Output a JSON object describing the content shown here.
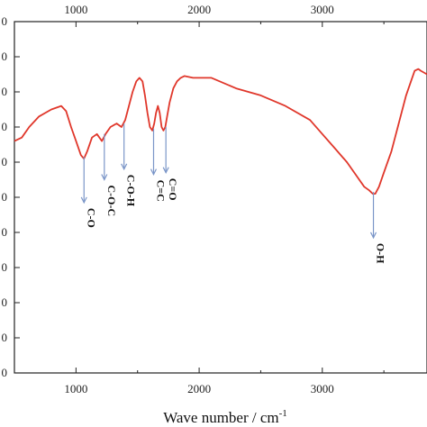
{
  "chart_data": {
    "type": "line",
    "xlabel": "Wave number / cm",
    "xlabel_superscript": "-1",
    "xlim": [
      500,
      3850
    ],
    "ylim": [
      0,
      1
    ],
    "x_ticks": [
      1000,
      2000,
      3000
    ],
    "x_tick_labels": [
      "1000",
      "2000",
      "3000"
    ],
    "top_tick_labels": [
      "1000",
      "2000",
      "3000"
    ],
    "y_ticks": [
      0.0,
      0.1,
      0.2,
      0.3,
      0.4,
      0.5,
      0.6,
      0.7,
      0.8,
      0.9,
      1.0
    ],
    "y_tick_labels": [
      "0",
      "0",
      "0",
      "0",
      "0",
      "0",
      "0",
      "0",
      "0",
      "0",
      "0"
    ],
    "grid": false,
    "line_color": "#e0372b",
    "arrow_color": "#7b96c8",
    "series": [
      {
        "x": [
          500,
          560,
          620,
          700,
          800,
          880,
          920,
          960,
          1000,
          1040,
          1065,
          1090,
          1130,
          1170,
          1210,
          1240,
          1280,
          1330,
          1370,
          1400,
          1430,
          1460,
          1490,
          1515,
          1540,
          1560,
          1580,
          1600,
          1620,
          1635,
          1650,
          1665,
          1680,
          1695,
          1710,
          1725,
          1740,
          1760,
          1790,
          1820,
          1850,
          1880,
          1950,
          2100,
          2300,
          2500,
          2700,
          2900,
          3000,
          3100,
          3200,
          3280,
          3340,
          3380,
          3410,
          3430,
          3460,
          3500,
          3560,
          3620,
          3680,
          3720,
          3750,
          3780,
          3800,
          3850
        ],
        "y": [
          0.66,
          0.67,
          0.7,
          0.73,
          0.75,
          0.76,
          0.745,
          0.7,
          0.66,
          0.62,
          0.61,
          0.63,
          0.67,
          0.68,
          0.66,
          0.68,
          0.7,
          0.71,
          0.7,
          0.72,
          0.76,
          0.8,
          0.83,
          0.84,
          0.83,
          0.79,
          0.74,
          0.7,
          0.69,
          0.71,
          0.74,
          0.76,
          0.74,
          0.7,
          0.69,
          0.7,
          0.73,
          0.77,
          0.81,
          0.83,
          0.84,
          0.845,
          0.84,
          0.84,
          0.81,
          0.79,
          0.76,
          0.72,
          0.68,
          0.64,
          0.6,
          0.56,
          0.53,
          0.52,
          0.51,
          0.51,
          0.53,
          0.57,
          0.63,
          0.71,
          0.79,
          0.83,
          0.86,
          0.865,
          0.86,
          0.85
        ]
      }
    ],
    "annotations": [
      {
        "label": "C-O",
        "x": 1065,
        "y": 0.61
      },
      {
        "label": "C-O-C",
        "x": 1230,
        "y": 0.675
      },
      {
        "label": "C-O-H",
        "x": 1390,
        "y": 0.705
      },
      {
        "label": "C=C",
        "x": 1630,
        "y": 0.69
      },
      {
        "label": "C=O",
        "x": 1730,
        "y": 0.695
      },
      {
        "label": "O-H",
        "x": 3415,
        "y": 0.51
      }
    ]
  }
}
